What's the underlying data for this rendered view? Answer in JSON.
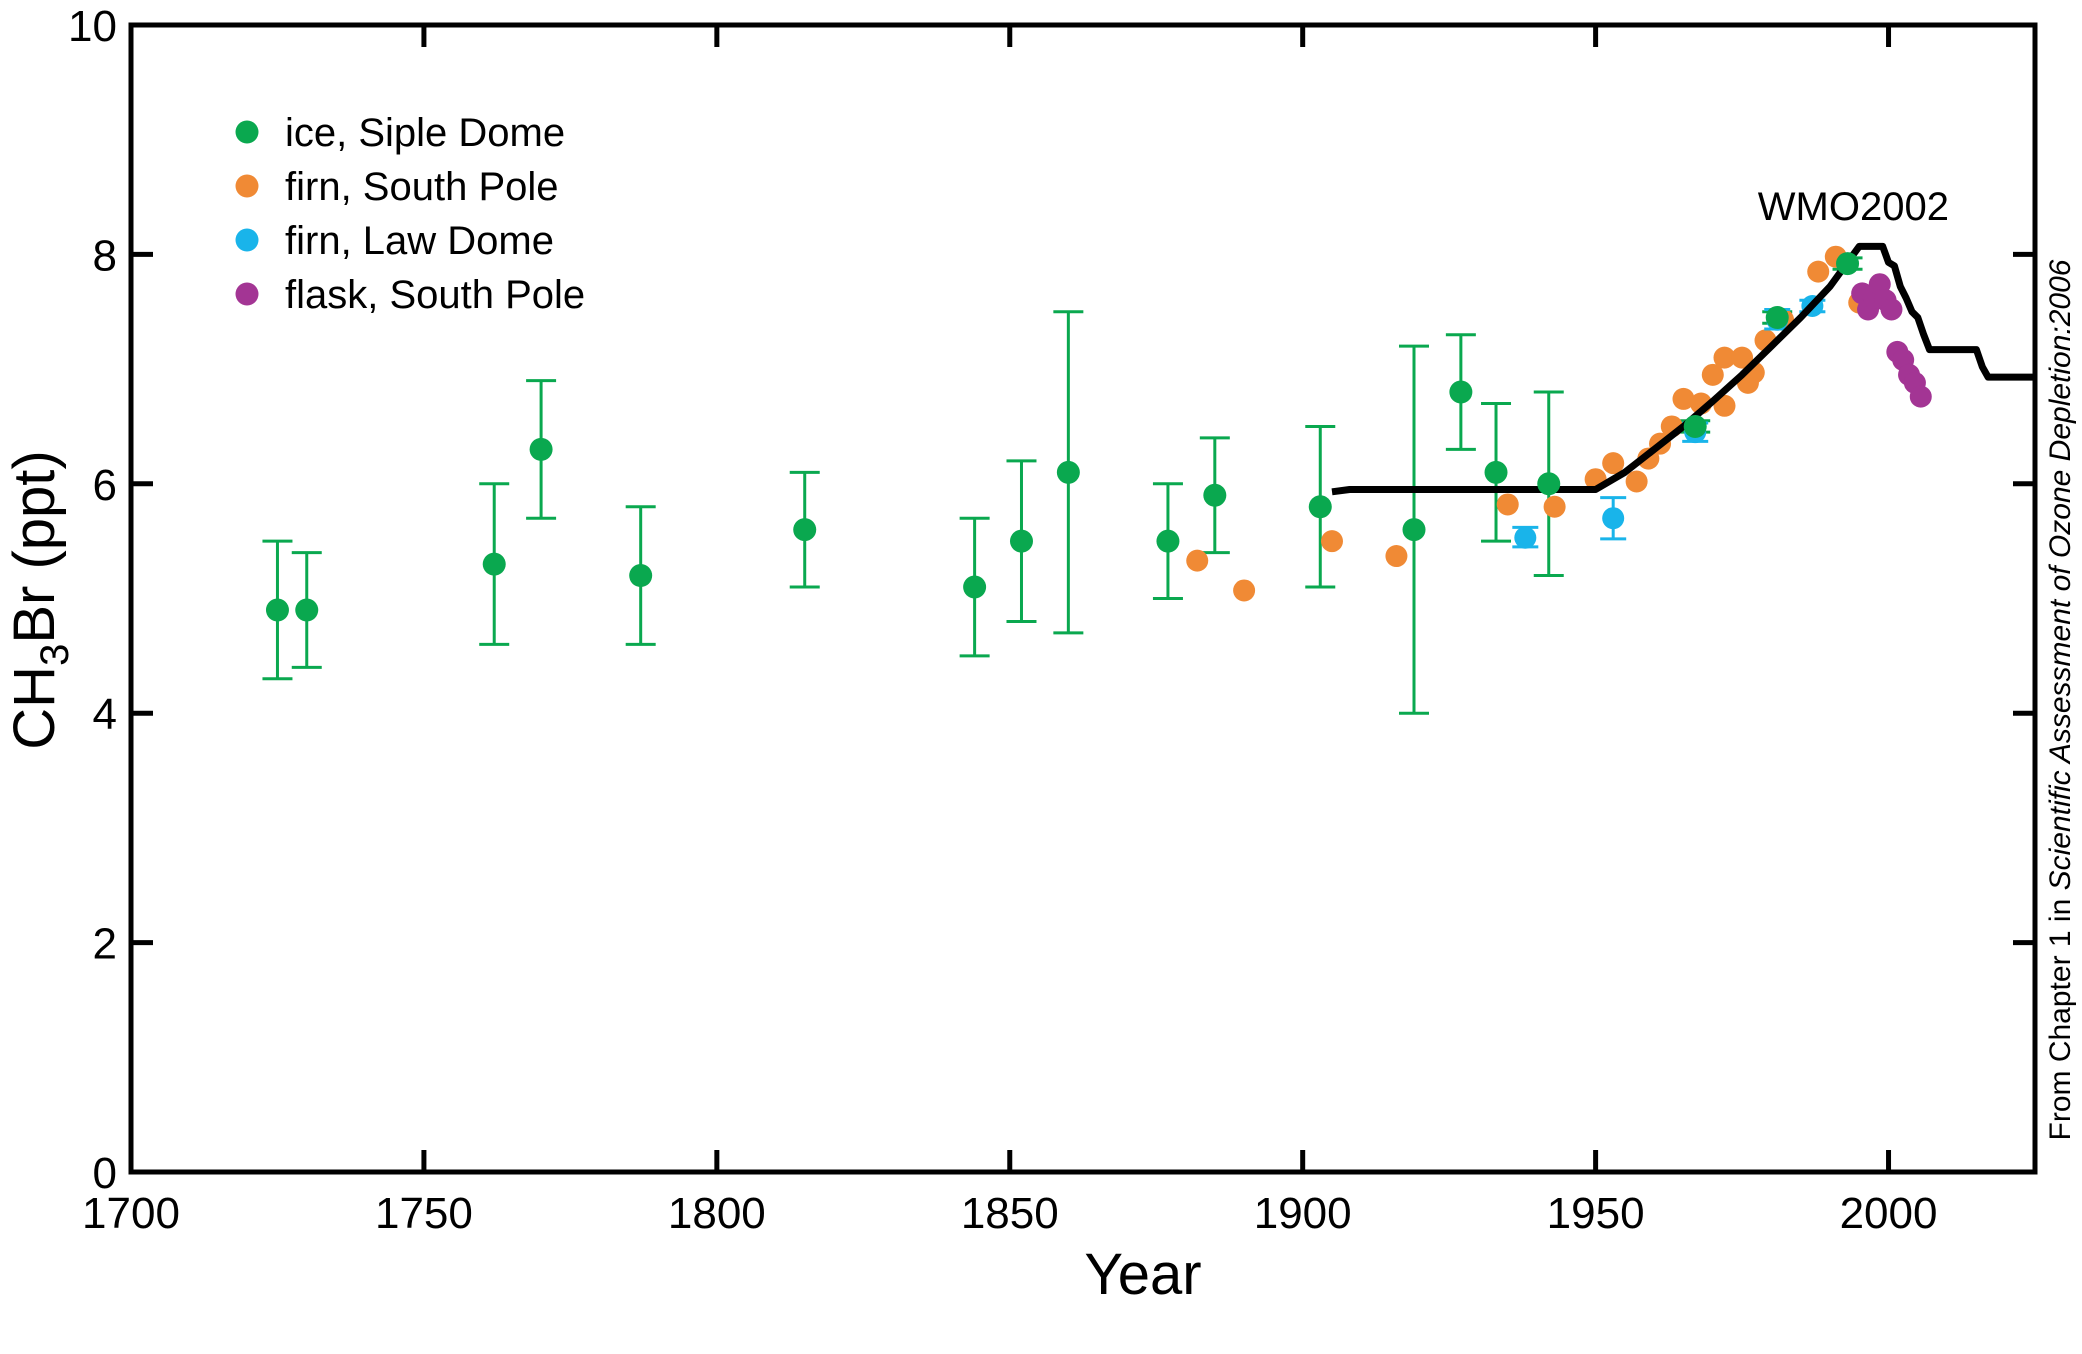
{
  "chart_data": {
    "type": "scatter",
    "xlabel": "Year",
    "ylabel_main": "CH",
    "ylabel_sub": "3",
    "ylabel_rest": "Br (ppt)",
    "xlim": [
      1700,
      2025
    ],
    "ylim": [
      0,
      10
    ],
    "xticks": [
      1700,
      1750,
      1800,
      1850,
      1900,
      1950,
      2000
    ],
    "yticks": [
      0,
      2,
      4,
      6,
      8,
      10
    ],
    "grid": false,
    "legend_position": "top-left",
    "series": [
      {
        "name": "ice, Siple Dome",
        "color": "#0aa84f",
        "points": [
          {
            "x": 1725,
            "y": 4.9,
            "lo": 4.3,
            "hi": 5.5
          },
          {
            "x": 1730,
            "y": 4.9,
            "lo": 4.4,
            "hi": 5.4
          },
          {
            "x": 1762,
            "y": 5.3,
            "lo": 4.6,
            "hi": 6.0
          },
          {
            "x": 1770,
            "y": 6.3,
            "lo": 5.7,
            "hi": 6.9
          },
          {
            "x": 1787,
            "y": 5.2,
            "lo": 4.6,
            "hi": 5.8
          },
          {
            "x": 1815,
            "y": 5.6,
            "lo": 5.1,
            "hi": 6.1
          },
          {
            "x": 1844,
            "y": 5.1,
            "lo": 4.5,
            "hi": 5.7
          },
          {
            "x": 1852,
            "y": 5.5,
            "lo": 4.8,
            "hi": 6.2
          },
          {
            "x": 1860,
            "y": 6.1,
            "lo": 4.7,
            "hi": 7.5
          },
          {
            "x": 1877,
            "y": 5.5,
            "lo": 5.0,
            "hi": 6.0
          },
          {
            "x": 1885,
            "y": 5.9,
            "lo": 5.4,
            "hi": 6.4
          },
          {
            "x": 1903,
            "y": 5.8,
            "lo": 5.1,
            "hi": 6.5
          },
          {
            "x": 1919,
            "y": 5.6,
            "lo": 4.0,
            "hi": 7.2
          },
          {
            "x": 1927,
            "y": 6.8,
            "lo": 6.3,
            "hi": 7.3
          },
          {
            "x": 1933,
            "y": 6.1,
            "lo": 5.5,
            "hi": 6.7
          },
          {
            "x": 1942,
            "y": 6.0,
            "lo": 5.2,
            "hi": 6.8
          },
          {
            "x": 1967,
            "y": 6.5,
            "lo": 6.45,
            "hi": 6.55
          },
          {
            "x": 1981,
            "y": 7.45,
            "lo": 7.4,
            "hi": 7.5
          },
          {
            "x": 1993,
            "y": 7.92,
            "lo": 7.87,
            "hi": 7.97
          }
        ]
      },
      {
        "name": "firn, South Pole",
        "color": "#f08a35",
        "points": [
          {
            "x": 1882,
            "y": 5.33
          },
          {
            "x": 1890,
            "y": 5.07
          },
          {
            "x": 1905,
            "y": 5.5
          },
          {
            "x": 1916,
            "y": 5.37
          },
          {
            "x": 1935,
            "y": 5.82
          },
          {
            "x": 1943,
            "y": 5.8
          },
          {
            "x": 1950,
            "y": 6.04
          },
          {
            "x": 1953,
            "y": 6.18
          },
          {
            "x": 1957,
            "y": 6.02
          },
          {
            "x": 1959,
            "y": 6.22
          },
          {
            "x": 1961,
            "y": 6.35
          },
          {
            "x": 1963,
            "y": 6.5
          },
          {
            "x": 1965,
            "y": 6.74
          },
          {
            "x": 1968,
            "y": 6.7
          },
          {
            "x": 1970,
            "y": 6.95
          },
          {
            "x": 1972,
            "y": 7.1
          },
          {
            "x": 1972,
            "y": 6.68
          },
          {
            "x": 1975,
            "y": 7.1
          },
          {
            "x": 1976,
            "y": 6.88
          },
          {
            "x": 1977,
            "y": 6.97
          },
          {
            "x": 1979,
            "y": 7.25
          },
          {
            "x": 1982,
            "y": 7.43
          },
          {
            "x": 1988,
            "y": 7.85
          },
          {
            "x": 1991,
            "y": 7.98
          },
          {
            "x": 1995,
            "y": 7.58
          }
        ]
      },
      {
        "name": "firn, Law Dome",
        "color": "#19b4ea",
        "points": [
          {
            "x": 1938,
            "y": 5.53,
            "lo": 5.45,
            "hi": 5.62
          },
          {
            "x": 1953,
            "y": 5.7,
            "lo": 5.52,
            "hi": 5.88
          },
          {
            "x": 1967,
            "y": 6.45,
            "lo": 6.37,
            "hi": 6.53
          },
          {
            "x": 1981,
            "y": 7.43,
            "lo": 7.35,
            "hi": 7.52
          },
          {
            "x": 1987,
            "y": 7.55,
            "lo": 7.5,
            "hi": 7.6
          }
        ]
      },
      {
        "name": "flask, South Pole",
        "color": "#a33594",
        "points": [
          {
            "x": 1995.5,
            "y": 7.66
          },
          {
            "x": 1996.5,
            "y": 7.52
          },
          {
            "x": 1997.5,
            "y": 7.62
          },
          {
            "x": 1998.5,
            "y": 7.74
          },
          {
            "x": 1999.5,
            "y": 7.6
          },
          {
            "x": 2000.5,
            "y": 7.52
          },
          {
            "x": 2001.5,
            "y": 7.15
          },
          {
            "x": 2002.5,
            "y": 7.08
          },
          {
            "x": 2003.5,
            "y": 6.95
          },
          {
            "x": 2004.5,
            "y": 6.88
          },
          {
            "x": 2005.5,
            "y": 6.76
          }
        ]
      }
    ],
    "line": {
      "color": "#000000",
      "x": [
        1905,
        1908,
        1940,
        1950,
        1955,
        1960,
        1965,
        1970,
        1975,
        1980,
        1985,
        1990,
        1995,
        1997,
        1999,
        2000,
        2001,
        2002,
        2003,
        2004,
        2005,
        2006,
        2007,
        2010,
        2015,
        2016,
        2017,
        2025
      ],
      "y": [
        5.93,
        5.95,
        5.95,
        5.95,
        6.1,
        6.3,
        6.5,
        6.72,
        6.95,
        7.2,
        7.45,
        7.72,
        8.07,
        8.07,
        8.07,
        7.93,
        7.9,
        7.72,
        7.62,
        7.5,
        7.45,
        7.3,
        7.17,
        7.17,
        7.17,
        7.02,
        6.93,
        6.93
      ]
    },
    "annotations": [
      {
        "text": "WMO2002",
        "x": 1994,
        "y": 8.3
      }
    ],
    "credit_prefix": "From Chapter 1 in ",
    "credit_italic": "Scientific Assessment of Ozone Depletion:2006"
  }
}
